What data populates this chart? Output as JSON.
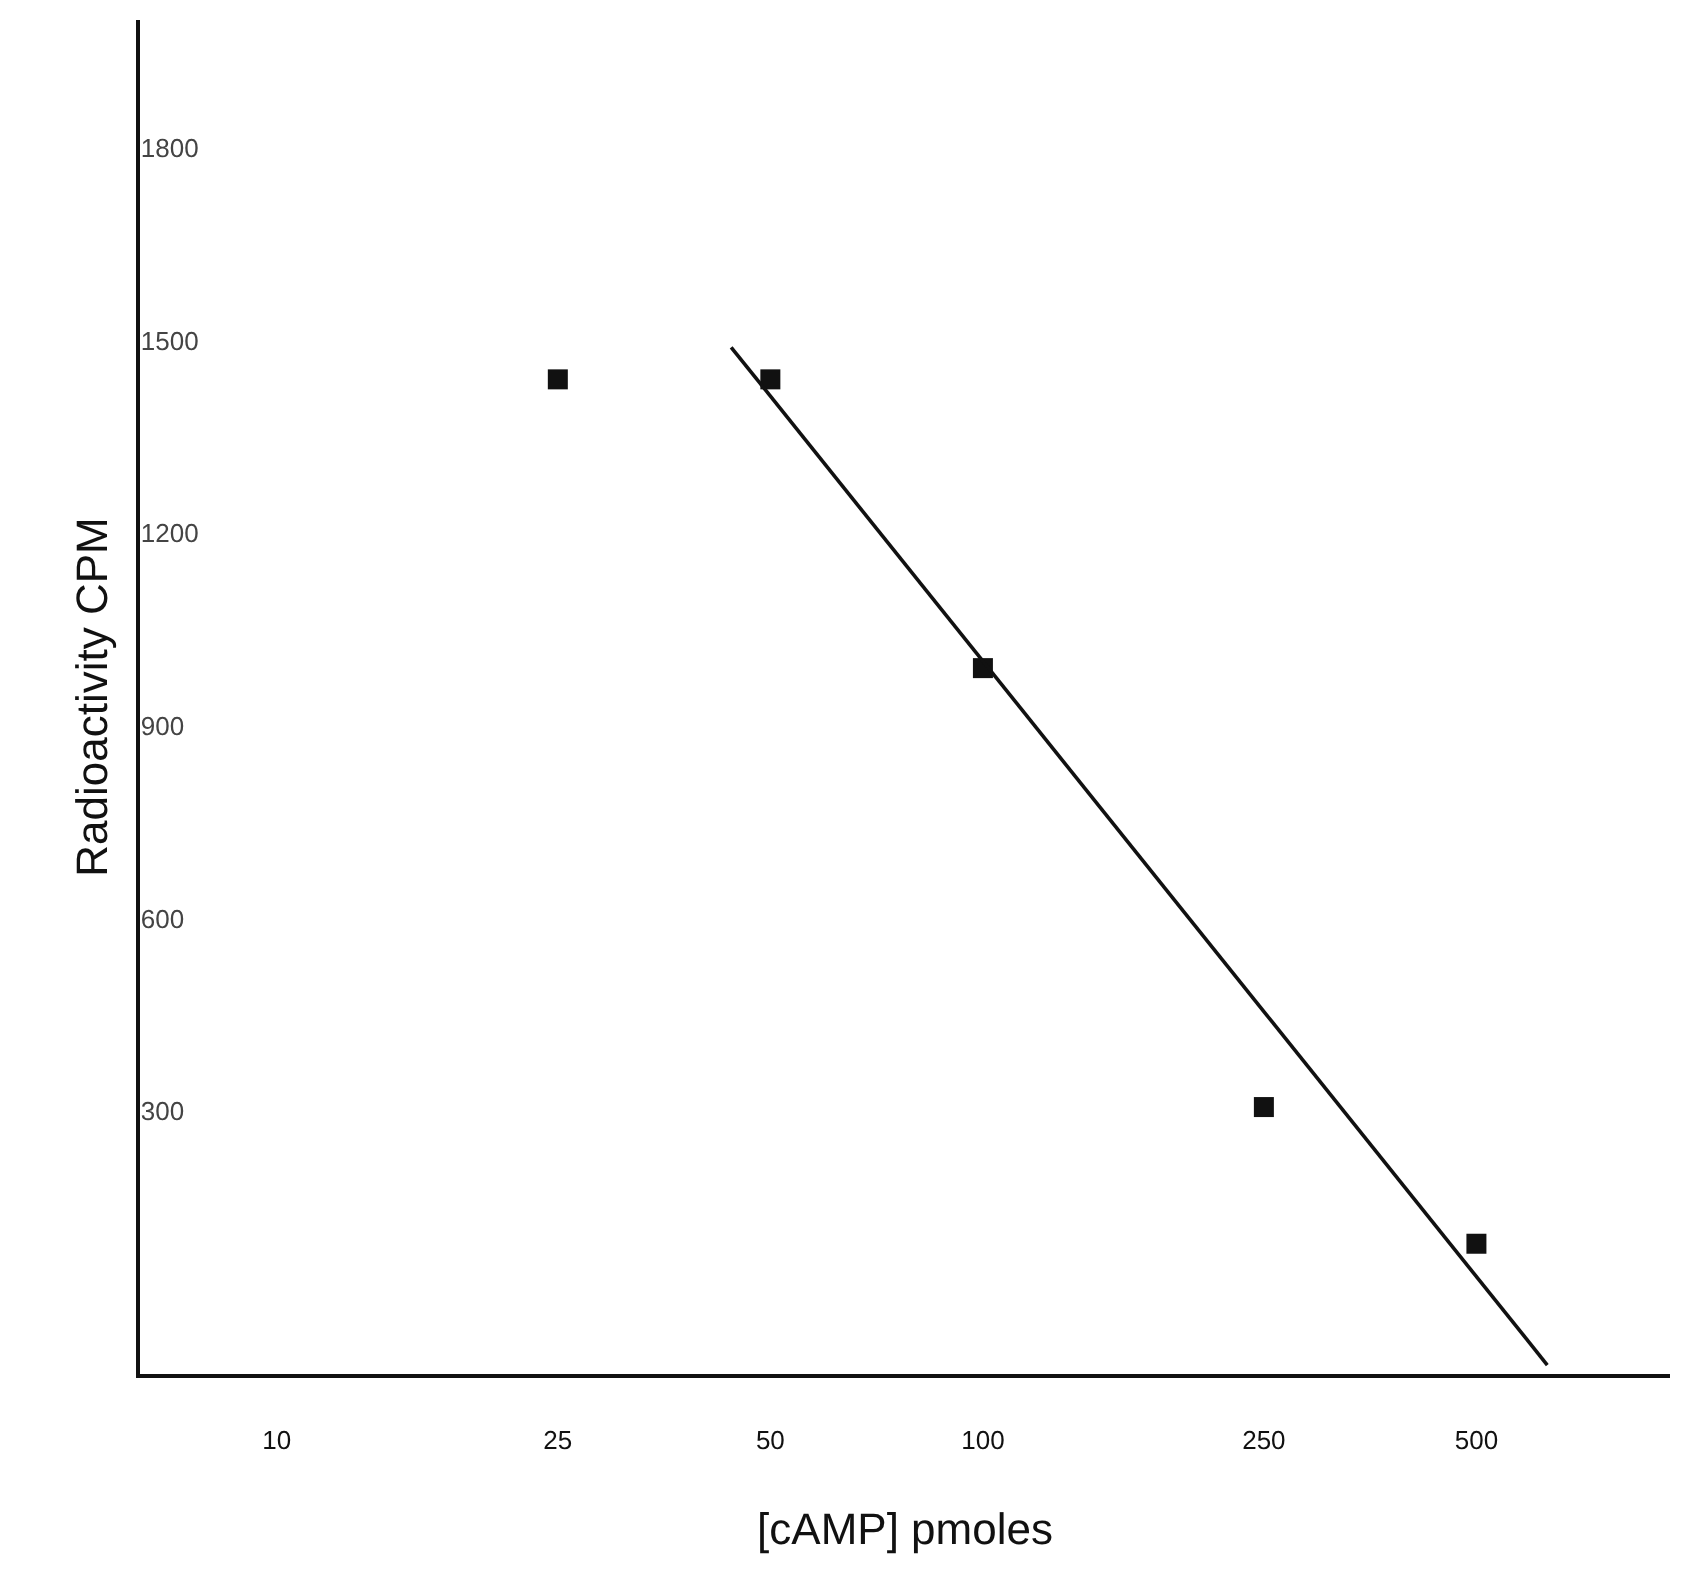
{
  "chart_data": {
    "type": "scatter",
    "xlabel": "[cAMP] pmoles",
    "ylabel": "Radioactivity CPM",
    "log": "x",
    "grid": false,
    "legend": false,
    "xlim": [
      6.4,
      940
    ],
    "xticks": [
      10,
      25,
      50,
      100,
      250,
      500
    ],
    "ylim": [
      -110,
      2000
    ],
    "yticks": [
      300,
      600,
      900,
      1200,
      1500,
      1800
    ],
    "series": [
      {
        "color": "#111111",
        "marker": "square",
        "x": [
          25,
          50,
          100,
          250,
          500
        ],
        "values": [
          1440,
          1440,
          990,
          306,
          93
        ]
      },
      {
        "type": "line",
        "color": "#111111",
        "marker": "none",
        "line_style": "solid",
        "x": [
          44,
          630
        ],
        "values": [
          1490,
          -96
        ]
      }
    ]
  }
}
